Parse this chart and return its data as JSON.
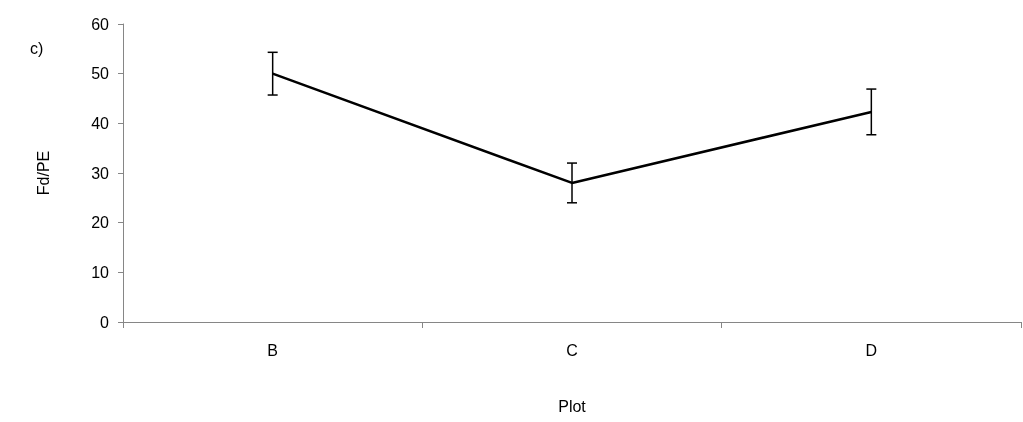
{
  "chart_data": {
    "type": "line",
    "annotations": [
      "c)"
    ],
    "xlabel": "Plot",
    "ylabel": "Fd/PE",
    "categories": [
      "B",
      "C",
      "D"
    ],
    "series": [
      {
        "color": "#000000",
        "values": [
          50,
          28,
          42.3
        ],
        "errors": [
          4.3,
          4,
          4.6
        ]
      }
    ],
    "ylim": [
      0,
      60
    ],
    "yticks": [
      0,
      10,
      20,
      30,
      40,
      50,
      60
    ],
    "grid": false,
    "marker": "none",
    "line_style": "solid"
  }
}
